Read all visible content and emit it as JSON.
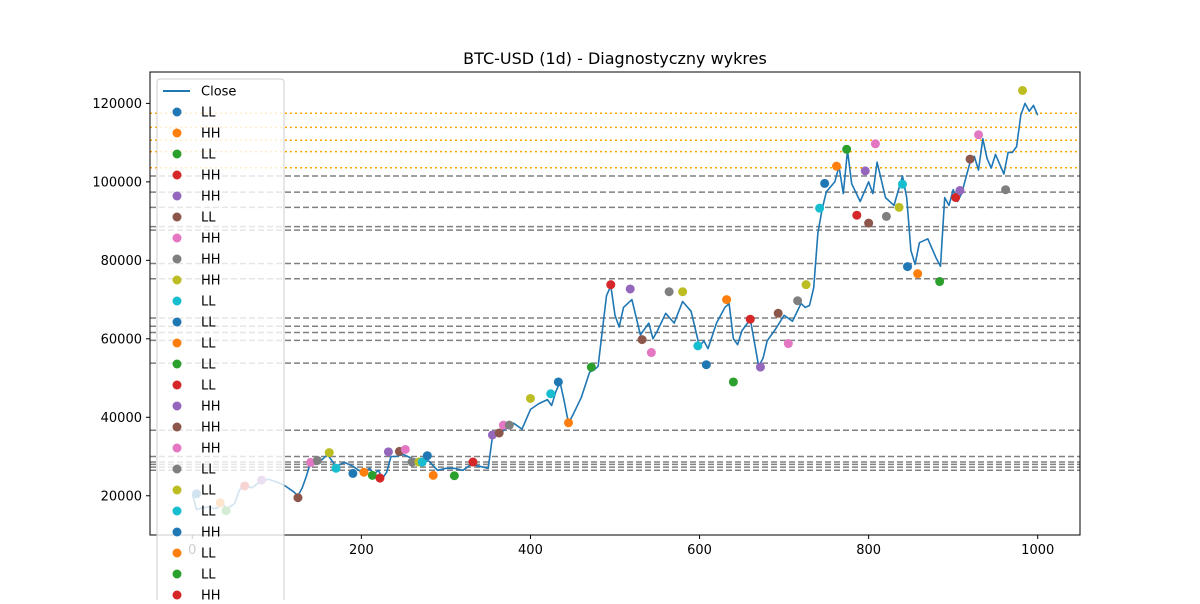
{
  "chart_data": {
    "type": "line",
    "title": "BTC-USD (1d) - Diagnostyczny wykres",
    "xlabel": "",
    "ylabel": "",
    "xlim": [
      -50,
      1050
    ],
    "ylim": [
      10000,
      128000
    ],
    "x_ticks": [
      0,
      200,
      400,
      600,
      800,
      1000
    ],
    "y_ticks": [
      20000,
      40000,
      60000,
      80000,
      100000,
      120000
    ],
    "x_tick_labels": [
      "0",
      "200",
      "400",
      "600",
      "800",
      "1000"
    ],
    "y_tick_labels": [
      "20000",
      "40000",
      "60000",
      "80000",
      "100000",
      "120000"
    ],
    "grid": false,
    "legend_placement": "upper-left",
    "series": [
      {
        "name": "Close",
        "color": "#1f77b4",
        "x": [
          0,
          5,
          10,
          15,
          20,
          25,
          30,
          35,
          40,
          45,
          50,
          55,
          60,
          70,
          80,
          90,
          100,
          110,
          120,
          125,
          130,
          135,
          140,
          145,
          150,
          160,
          170,
          180,
          190,
          200,
          210,
          215,
          220,
          225,
          230,
          235,
          240,
          250,
          260,
          270,
          280,
          290,
          300,
          310,
          320,
          330,
          340,
          350,
          355,
          360,
          365,
          370,
          380,
          390,
          400,
          410,
          420,
          425,
          430,
          435,
          440,
          445,
          450,
          460,
          470,
          475,
          480,
          485,
          490,
          495,
          500,
          505,
          510,
          520,
          530,
          540,
          545,
          550,
          560,
          570,
          580,
          590,
          600,
          605,
          610,
          620,
          630,
          635,
          640,
          645,
          650,
          660,
          670,
          675,
          680,
          690,
          700,
          710,
          720,
          725,
          730,
          735,
          740,
          745,
          750,
          760,
          765,
          770,
          775,
          780,
          790,
          800,
          805,
          810,
          820,
          830,
          840,
          845,
          850,
          855,
          860,
          870,
          880,
          885,
          890,
          895,
          900,
          905,
          910,
          920,
          925,
          930,
          935,
          940,
          945,
          950,
          955,
          960,
          965,
          970,
          975,
          980,
          985,
          990,
          995,
          1000
        ],
        "y": [
          20500,
          16500,
          16800,
          17000,
          17200,
          16700,
          16900,
          18500,
          16500,
          17300,
          18000,
          21000,
          23000,
          22000,
          23500,
          24200,
          23500,
          22500,
          21000,
          20000,
          22000,
          25000,
          28500,
          29000,
          28500,
          30500,
          27500,
          28500,
          27500,
          26000,
          27000,
          25500,
          26500,
          24500,
          26000,
          30000,
          30000,
          30500,
          29500,
          29000,
          28800,
          26500,
          27000,
          27000,
          26500,
          28000,
          27500,
          27000,
          35000,
          35500,
          36000,
          37000,
          38500,
          37000,
          42000,
          43500,
          44500,
          43000,
          46500,
          49000,
          44000,
          38500,
          40500,
          45000,
          51500,
          52000,
          53000,
          62000,
          71000,
          73500,
          66000,
          63000,
          68000,
          70000,
          61000,
          64000,
          60000,
          62000,
          66500,
          64000,
          69500,
          67000,
          58000,
          59500,
          57500,
          64000,
          68000,
          69000,
          60000,
          58500,
          62000,
          65000,
          53000,
          55000,
          59500,
          62500,
          66000,
          64500,
          69000,
          68000,
          68500,
          73000,
          87000,
          93000,
          97500,
          100000,
          104000,
          97000,
          108000,
          99500,
          95000,
          100000,
          97000,
          105000,
          96000,
          94000,
          101500,
          96000,
          82500,
          79000,
          84500,
          85500,
          80500,
          78500,
          96000,
          94000,
          98000,
          95000,
          97000,
          105000,
          106500,
          103000,
          111000,
          106000,
          103500,
          107000,
          104500,
          102000,
          107500,
          107500,
          109000,
          117000,
          120000,
          118000,
          119500,
          117000
        ],
        "min_max_levels": [
          26500,
          27300,
          28000,
          28600,
          30000,
          36700,
          53800,
          59600,
          61600,
          63200,
          65300,
          75300,
          79200,
          87700,
          88600,
          93500,
          97400,
          101500
        ],
        "resistance_levels": [
          103600,
          107700,
          110600,
          113900,
          117500
        ]
      }
    ],
    "swing_points": [
      {
        "label": "LL",
        "x": 5,
        "y": 20500,
        "color": "#1f77b4"
      },
      {
        "label": "HH",
        "x": 33,
        "y": 18200,
        "color": "#ff7f0e"
      },
      {
        "label": "LL",
        "x": 40,
        "y": 16200,
        "color": "#2ca02c"
      },
      {
        "label": "HH",
        "x": 62,
        "y": 22500,
        "color": "#d62728"
      },
      {
        "label": "HH",
        "x": 82,
        "y": 24000,
        "color": "#9467bd"
      },
      {
        "label": "LL",
        "x": 125,
        "y": 19500,
        "color": "#8c564b"
      },
      {
        "label": "HH",
        "x": 140,
        "y": 28500,
        "color": "#e377c2"
      },
      {
        "label": "HH",
        "x": 148,
        "y": 29000,
        "color": "#7f7f7f"
      },
      {
        "label": "HH",
        "x": 162,
        "y": 31000,
        "color": "#bcbd22"
      },
      {
        "label": "LL",
        "x": 170,
        "y": 27000,
        "color": "#17becf"
      },
      {
        "label": "LL",
        "x": 190,
        "y": 25700,
        "color": "#1f77b4"
      },
      {
        "label": "LL",
        "x": 203,
        "y": 26000,
        "color": "#ff7f0e"
      },
      {
        "label": "LL",
        "x": 213,
        "y": 25200,
        "color": "#2ca02c"
      },
      {
        "label": "LL",
        "x": 222,
        "y": 24500,
        "color": "#d62728"
      },
      {
        "label": "HH",
        "x": 232,
        "y": 31200,
        "color": "#9467bd"
      },
      {
        "label": "HH",
        "x": 245,
        "y": 31300,
        "color": "#8c564b"
      },
      {
        "label": "HH",
        "x": 252,
        "y": 31800,
        "color": "#e377c2"
      },
      {
        "label": "LL",
        "x": 260,
        "y": 28600,
        "color": "#7f7f7f"
      },
      {
        "label": "LL",
        "x": 268,
        "y": 28600,
        "color": "#bcbd22"
      },
      {
        "label": "LL",
        "x": 272,
        "y": 28600,
        "color": "#17becf"
      },
      {
        "label": "HH",
        "x": 278,
        "y": 30200,
        "color": "#1f77b4"
      },
      {
        "label": "LL",
        "x": 285,
        "y": 25200,
        "color": "#ff7f0e"
      },
      {
        "label": "LL",
        "x": 310,
        "y": 25100,
        "color": "#2ca02c"
      },
      {
        "label": "HH",
        "x": 332,
        "y": 28600,
        "color": "#d62728"
      },
      {
        "label": "HH",
        "x": 355,
        "y": 35500,
        "color": "#9467bd"
      },
      {
        "label": "HH",
        "x": 363,
        "y": 36000,
        "color": "#8c564b"
      },
      {
        "label": "HH",
        "x": 368,
        "y": 38000,
        "color": "#e377c2"
      },
      {
        "label": "HH",
        "x": 375,
        "y": 38000,
        "color": "#7f7f7f"
      },
      {
        "label": "HH",
        "x": 400,
        "y": 44800,
        "color": "#bcbd22"
      },
      {
        "label": "LL",
        "x": 424,
        "y": 46000,
        "color": "#17becf"
      },
      {
        "label": "HH",
        "x": 433,
        "y": 49000,
        "color": "#1f77b4"
      },
      {
        "label": "LL",
        "x": 445,
        "y": 38600,
        "color": "#ff7f0e"
      },
      {
        "label": "HH",
        "x": 472,
        "y": 52800,
        "color": "#2ca02c"
      },
      {
        "label": "HH",
        "x": 495,
        "y": 73800,
        "color": "#d62728"
      },
      {
        "label": "HH",
        "x": 518,
        "y": 72700,
        "color": "#9467bd"
      },
      {
        "label": "LL",
        "x": 532,
        "y": 59800,
        "color": "#8c564b"
      },
      {
        "label": "LL",
        "x": 543,
        "y": 56500,
        "color": "#e377c2"
      },
      {
        "label": "HH",
        "x": 564,
        "y": 72000,
        "color": "#7f7f7f"
      },
      {
        "label": "HH",
        "x": 580,
        "y": 72000,
        "color": "#bcbd22"
      },
      {
        "label": "LL",
        "x": 598,
        "y": 58200,
        "color": "#17becf"
      },
      {
        "label": "LL",
        "x": 608,
        "y": 53400,
        "color": "#1f77b4"
      },
      {
        "label": "HH",
        "x": 632,
        "y": 70000,
        "color": "#ff7f0e"
      },
      {
        "label": "LL",
        "x": 640,
        "y": 49000,
        "color": "#2ca02c"
      },
      {
        "label": "HH",
        "x": 660,
        "y": 65000,
        "color": "#d62728"
      },
      {
        "label": "LL",
        "x": 672,
        "y": 52800,
        "color": "#9467bd"
      },
      {
        "label": "HH",
        "x": 693,
        "y": 66500,
        "color": "#8c564b"
      },
      {
        "label": "LL",
        "x": 705,
        "y": 58800,
        "color": "#e377c2"
      },
      {
        "label": "HH",
        "x": 716,
        "y": 69700,
        "color": "#7f7f7f"
      },
      {
        "label": "HH",
        "x": 726,
        "y": 73800,
        "color": "#bcbd22"
      },
      {
        "label": "LL",
        "x": 742,
        "y": 93300,
        "color": "#17becf"
      },
      {
        "label": "HH",
        "x": 748,
        "y": 99600,
        "color": "#1f77b4"
      },
      {
        "label": "HH",
        "x": 762,
        "y": 104000,
        "color": "#ff7f0e"
      },
      {
        "label": "HH",
        "x": 774,
        "y": 108300,
        "color": "#2ca02c"
      },
      {
        "label": "LL",
        "x": 786,
        "y": 91500,
        "color": "#d62728"
      },
      {
        "label": "HH",
        "x": 796,
        "y": 102800,
        "color": "#9467bd"
      },
      {
        "label": "LL",
        "x": 800,
        "y": 89500,
        "color": "#8c564b"
      },
      {
        "label": "HH",
        "x": 808,
        "y": 109700,
        "color": "#e377c2"
      },
      {
        "label": "LL",
        "x": 821,
        "y": 91200,
        "color": "#7f7f7f"
      },
      {
        "label": "LL",
        "x": 836,
        "y": 93500,
        "color": "#bcbd22"
      },
      {
        "label": "HH",
        "x": 840,
        "y": 99400,
        "color": "#17becf"
      },
      {
        "label": "LL",
        "x": 846,
        "y": 78400,
        "color": "#1f77b4"
      },
      {
        "label": "LL",
        "x": 858,
        "y": 76600,
        "color": "#ff7f0e"
      },
      {
        "label": "LL",
        "x": 884,
        "y": 74600,
        "color": "#2ca02c"
      },
      {
        "label": "HH",
        "x": 903,
        "y": 96000,
        "color": "#d62728"
      },
      {
        "label": "HH",
        "x": 908,
        "y": 97800,
        "color": "#9467bd"
      },
      {
        "label": "HH",
        "x": 920,
        "y": 105800,
        "color": "#8c564b"
      },
      {
        "label": "HH",
        "x": 930,
        "y": 112000,
        "color": "#e377c2"
      },
      {
        "label": "LL",
        "x": 962,
        "y": 98000,
        "color": "#7f7f7f"
      },
      {
        "label": "HH",
        "x": 982,
        "y": 123300,
        "color": "#bcbd22"
      }
    ],
    "legend": {
      "entries": [
        {
          "label": "Close",
          "kind": "line",
          "color": "#1f77b4"
        },
        {
          "label": "LL",
          "kind": "marker",
          "color": "#1f77b4"
        },
        {
          "label": "HH",
          "kind": "marker",
          "color": "#ff7f0e"
        },
        {
          "label": "LL",
          "kind": "marker",
          "color": "#2ca02c"
        },
        {
          "label": "HH",
          "kind": "marker",
          "color": "#d62728"
        },
        {
          "label": "HH",
          "kind": "marker",
          "color": "#9467bd"
        },
        {
          "label": "LL",
          "kind": "marker",
          "color": "#8c564b"
        },
        {
          "label": "HH",
          "kind": "marker",
          "color": "#e377c2"
        },
        {
          "label": "HH",
          "kind": "marker",
          "color": "#7f7f7f"
        },
        {
          "label": "HH",
          "kind": "marker",
          "color": "#bcbd22"
        },
        {
          "label": "LL",
          "kind": "marker",
          "color": "#17becf"
        },
        {
          "label": "LL",
          "kind": "marker",
          "color": "#1f77b4"
        },
        {
          "label": "LL",
          "kind": "marker",
          "color": "#ff7f0e"
        },
        {
          "label": "LL",
          "kind": "marker",
          "color": "#2ca02c"
        },
        {
          "label": "LL",
          "kind": "marker",
          "color": "#d62728"
        },
        {
          "label": "HH",
          "kind": "marker",
          "color": "#9467bd"
        },
        {
          "label": "HH",
          "kind": "marker",
          "color": "#8c564b"
        },
        {
          "label": "HH",
          "kind": "marker",
          "color": "#e377c2"
        },
        {
          "label": "LL",
          "kind": "marker",
          "color": "#7f7f7f"
        },
        {
          "label": "LL",
          "kind": "marker",
          "color": "#bcbd22"
        },
        {
          "label": "LL",
          "kind": "marker",
          "color": "#17becf"
        },
        {
          "label": "HH",
          "kind": "marker",
          "color": "#1f77b4"
        },
        {
          "label": "LL",
          "kind": "marker",
          "color": "#ff7f0e"
        },
        {
          "label": "LL",
          "kind": "marker",
          "color": "#2ca02c"
        },
        {
          "label": "HH",
          "kind": "marker",
          "color": "#d62728"
        }
      ]
    },
    "colors": {
      "line": "#1f77b4",
      "level_gray": "#808080",
      "level_orange": "#ffa500",
      "axis": "#000000"
    }
  }
}
